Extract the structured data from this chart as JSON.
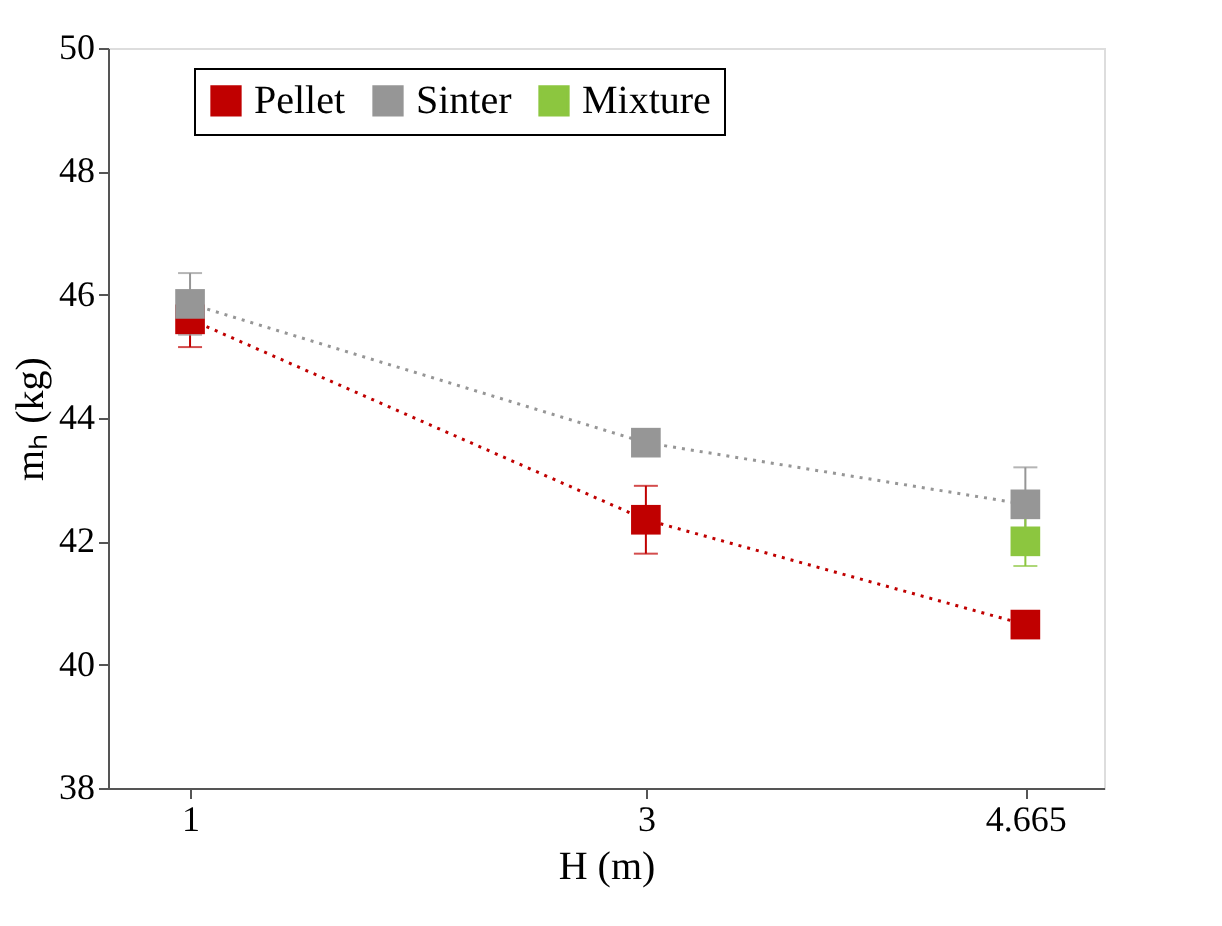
{
  "chart_data": {
    "type": "line",
    "xlabel": "H (m)",
    "ylabel": "mₕ (kg)",
    "x": [
      1,
      3,
      4.665
    ],
    "series": [
      {
        "name": "Pellet",
        "color": "#c00000",
        "values": [
          45.6,
          42.35,
          40.65
        ],
        "errors": [
          0.45,
          0.55,
          null
        ]
      },
      {
        "name": "Sinter",
        "color": "#969696",
        "values": [
          45.85,
          43.6,
          42.6
        ],
        "errors": [
          0.5,
          null,
          0.6
        ]
      },
      {
        "name": "Mixture",
        "color": "#8cc63f",
        "values": [
          null,
          null,
          42.0
        ],
        "errors": [
          null,
          null,
          0.4
        ]
      }
    ],
    "xlim": [
      0.64,
      5.01
    ],
    "xticks": [
      1,
      3,
      4.665
    ],
    "ylim": [
      38,
      50
    ],
    "yticks": [
      38,
      40,
      42,
      44,
      46,
      48,
      50
    ],
    "marker": "square",
    "line_style": "dotted",
    "legend": "top",
    "grid": false
  }
}
